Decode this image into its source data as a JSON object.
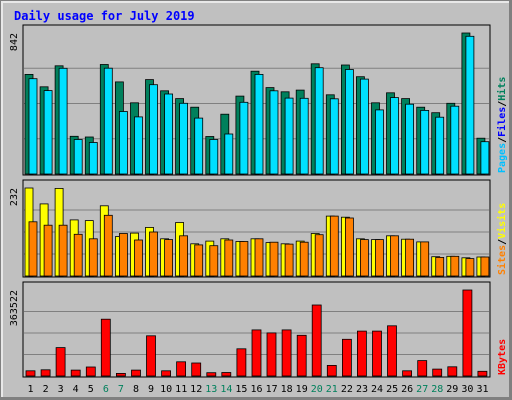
{
  "chart_data": {
    "type": "bar",
    "title": "Daily usage for July 2019",
    "categories": [
      "1",
      "2",
      "3",
      "4",
      "5",
      "6",
      "7",
      "8",
      "9",
      "10",
      "11",
      "12",
      "13",
      "14",
      "15",
      "16",
      "17",
      "18",
      "19",
      "20",
      "21",
      "22",
      "23",
      "24",
      "25",
      "26",
      "27",
      "28",
      "29",
      "30",
      "31"
    ],
    "weekend_days": [
      "6",
      "7",
      "13",
      "14",
      "20",
      "21",
      "27",
      "28"
    ],
    "panels": [
      {
        "id": "hits_files_pages",
        "max_label": "842",
        "ylim": [
          0,
          842
        ],
        "series": [
          {
            "name": "Hits",
            "color": "#00805c",
            "values": [
              595,
              521,
              646,
              225,
              221,
              654,
              550,
              425,
              564,
              497,
              450,
              399,
              224,
              357,
              465,
              614,
              516,
              491,
              501,
              658,
              473,
              651,
              581,
              425,
              485,
              450,
              399,
              366,
              422,
              842,
              214
            ]
          },
          {
            "name": "Files",
            "color": "#00e0ff",
            "values": [
              569,
              498,
              631,
              206,
              188,
              632,
              373,
              341,
              533,
              478,
              422,
              334,
              206,
              239,
              428,
              595,
              497,
              453,
              452,
              635,
              449,
              624,
              567,
              383,
              456,
              417,
              380,
              339,
              405,
              822,
              193
            ]
          }
        ],
        "side_labels": [
          {
            "text": "Pages",
            "color": "#00c0ff"
          },
          {
            "text": "Files",
            "color": "#0000ff"
          },
          {
            "text": "Hits",
            "color": "#00805c"
          }
        ],
        "separator": "/"
      },
      {
        "id": "sites_visits",
        "max_label": "232",
        "ylim": [
          0,
          232
        ],
        "series": [
          {
            "name": "Visits",
            "color": "#ffff00",
            "values": [
              232,
              190,
              231,
              148,
              146,
              185,
              104,
              113,
              128,
              98,
              141,
              85,
              92,
              98,
              91,
              98,
              88,
              85,
              92,
              112,
              158,
              155,
              98,
              96,
              106,
              97,
              90,
              51,
              52,
              48,
              50
            ]
          },
          {
            "name": "Sites",
            "color": "#ff8000",
            "values": [
              143,
              134,
              134,
              110,
              98,
              160,
              112,
              95,
              116,
              96,
              106,
              82,
              80,
              95,
              91,
              98,
              89,
              84,
              89,
              109,
              158,
              153,
              96,
              96,
              106,
              97,
              90,
              49,
              52,
              46,
              50
            ]
          }
        ],
        "side_labels": [
          {
            "text": "Sites",
            "color": "#ff8000"
          },
          {
            "text": "Visits",
            "color": "#ffff00"
          }
        ],
        "separator": "/"
      },
      {
        "id": "kbytes",
        "max_label": "363522",
        "ylim": [
          0,
          363522
        ],
        "series": [
          {
            "name": "KBytes",
            "color": "#ff0000",
            "values": [
              22000,
              26000,
              120000,
              25000,
              38000,
              240000,
              11000,
              25000,
              170000,
              22000,
              60000,
              55000,
              14000,
              15000,
              115000,
              195000,
              182000,
              195000,
              172000,
              300000,
              45000,
              155000,
              190000,
              190000,
              212000,
              22000,
              65000,
              29000,
              39000,
              363522,
              20000
            ]
          }
        ],
        "side_labels": [
          {
            "text": "KBytes",
            "color": "#ff0000"
          }
        ],
        "separator": ""
      }
    ],
    "colors": {
      "background": "#c0c0c0",
      "title": "#0000ff",
      "weekday_label": "#000000",
      "weekend_label": "#00805c",
      "gridline": "#808080"
    },
    "grid": true
  }
}
